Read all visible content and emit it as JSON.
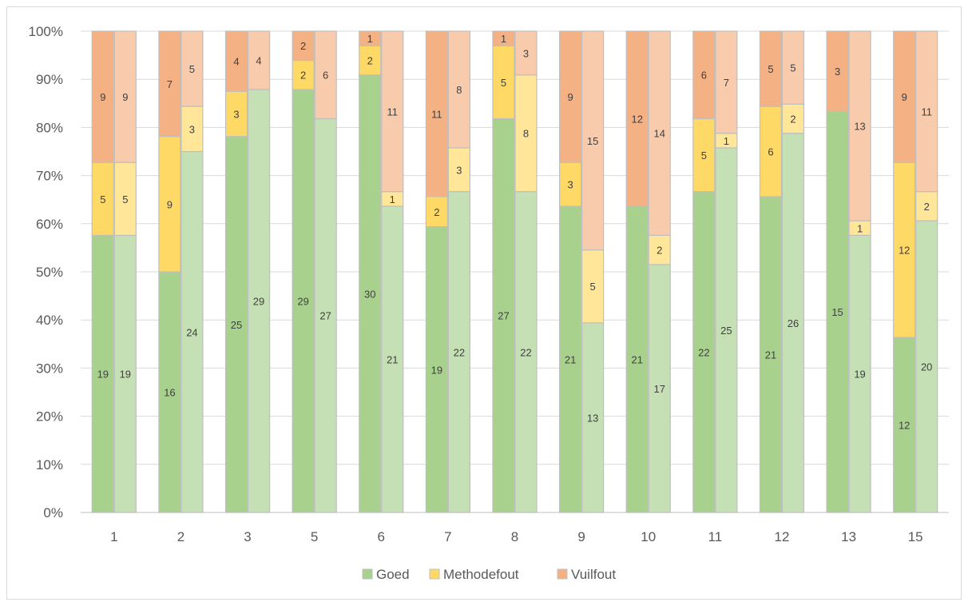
{
  "chart_data": {
    "type": "bar",
    "stacked": "percent",
    "title": "",
    "xlabel": "",
    "ylabel": "",
    "ylim": [
      0,
      100
    ],
    "y_ticks": [
      "0%",
      "10%",
      "20%",
      "30%",
      "40%",
      "50%",
      "60%",
      "70%",
      "80%",
      "90%",
      "100%"
    ],
    "categories": [
      "1",
      "2",
      "3",
      "5",
      "6",
      "7",
      "8",
      "9",
      "10",
      "11",
      "12",
      "13",
      "15"
    ],
    "bars_per_category": 2,
    "series": [
      {
        "name": "Goed",
        "color": "#a9d18e",
        "color_light": "#c5e0b4",
        "values_first": [
          19,
          16,
          25,
          29,
          30,
          19,
          27,
          21,
          21,
          22,
          21,
          15,
          12
        ],
        "values_second": [
          19,
          24,
          29,
          27,
          21,
          22,
          22,
          13,
          17,
          25,
          26,
          19,
          20
        ]
      },
      {
        "name": "Methodefout",
        "color": "#ffd966",
        "color_light": "#ffe699",
        "values_first": [
          5,
          9,
          3,
          2,
          2,
          2,
          5,
          3,
          0,
          5,
          6,
          0,
          12
        ],
        "values_second": [
          5,
          3,
          0,
          0,
          1,
          3,
          8,
          5,
          2,
          1,
          2,
          1,
          2
        ]
      },
      {
        "name": "Vuilfout",
        "color": "#f4b183",
        "color_light": "#f8cbad",
        "values_first": [
          9,
          7,
          4,
          2,
          1,
          11,
          1,
          9,
          12,
          6,
          5,
          3,
          9
        ],
        "values_second": [
          9,
          5,
          4,
          6,
          11,
          8,
          3,
          15,
          14,
          7,
          5,
          13,
          11
        ]
      }
    ],
    "grid": true,
    "legend": "bottom"
  }
}
